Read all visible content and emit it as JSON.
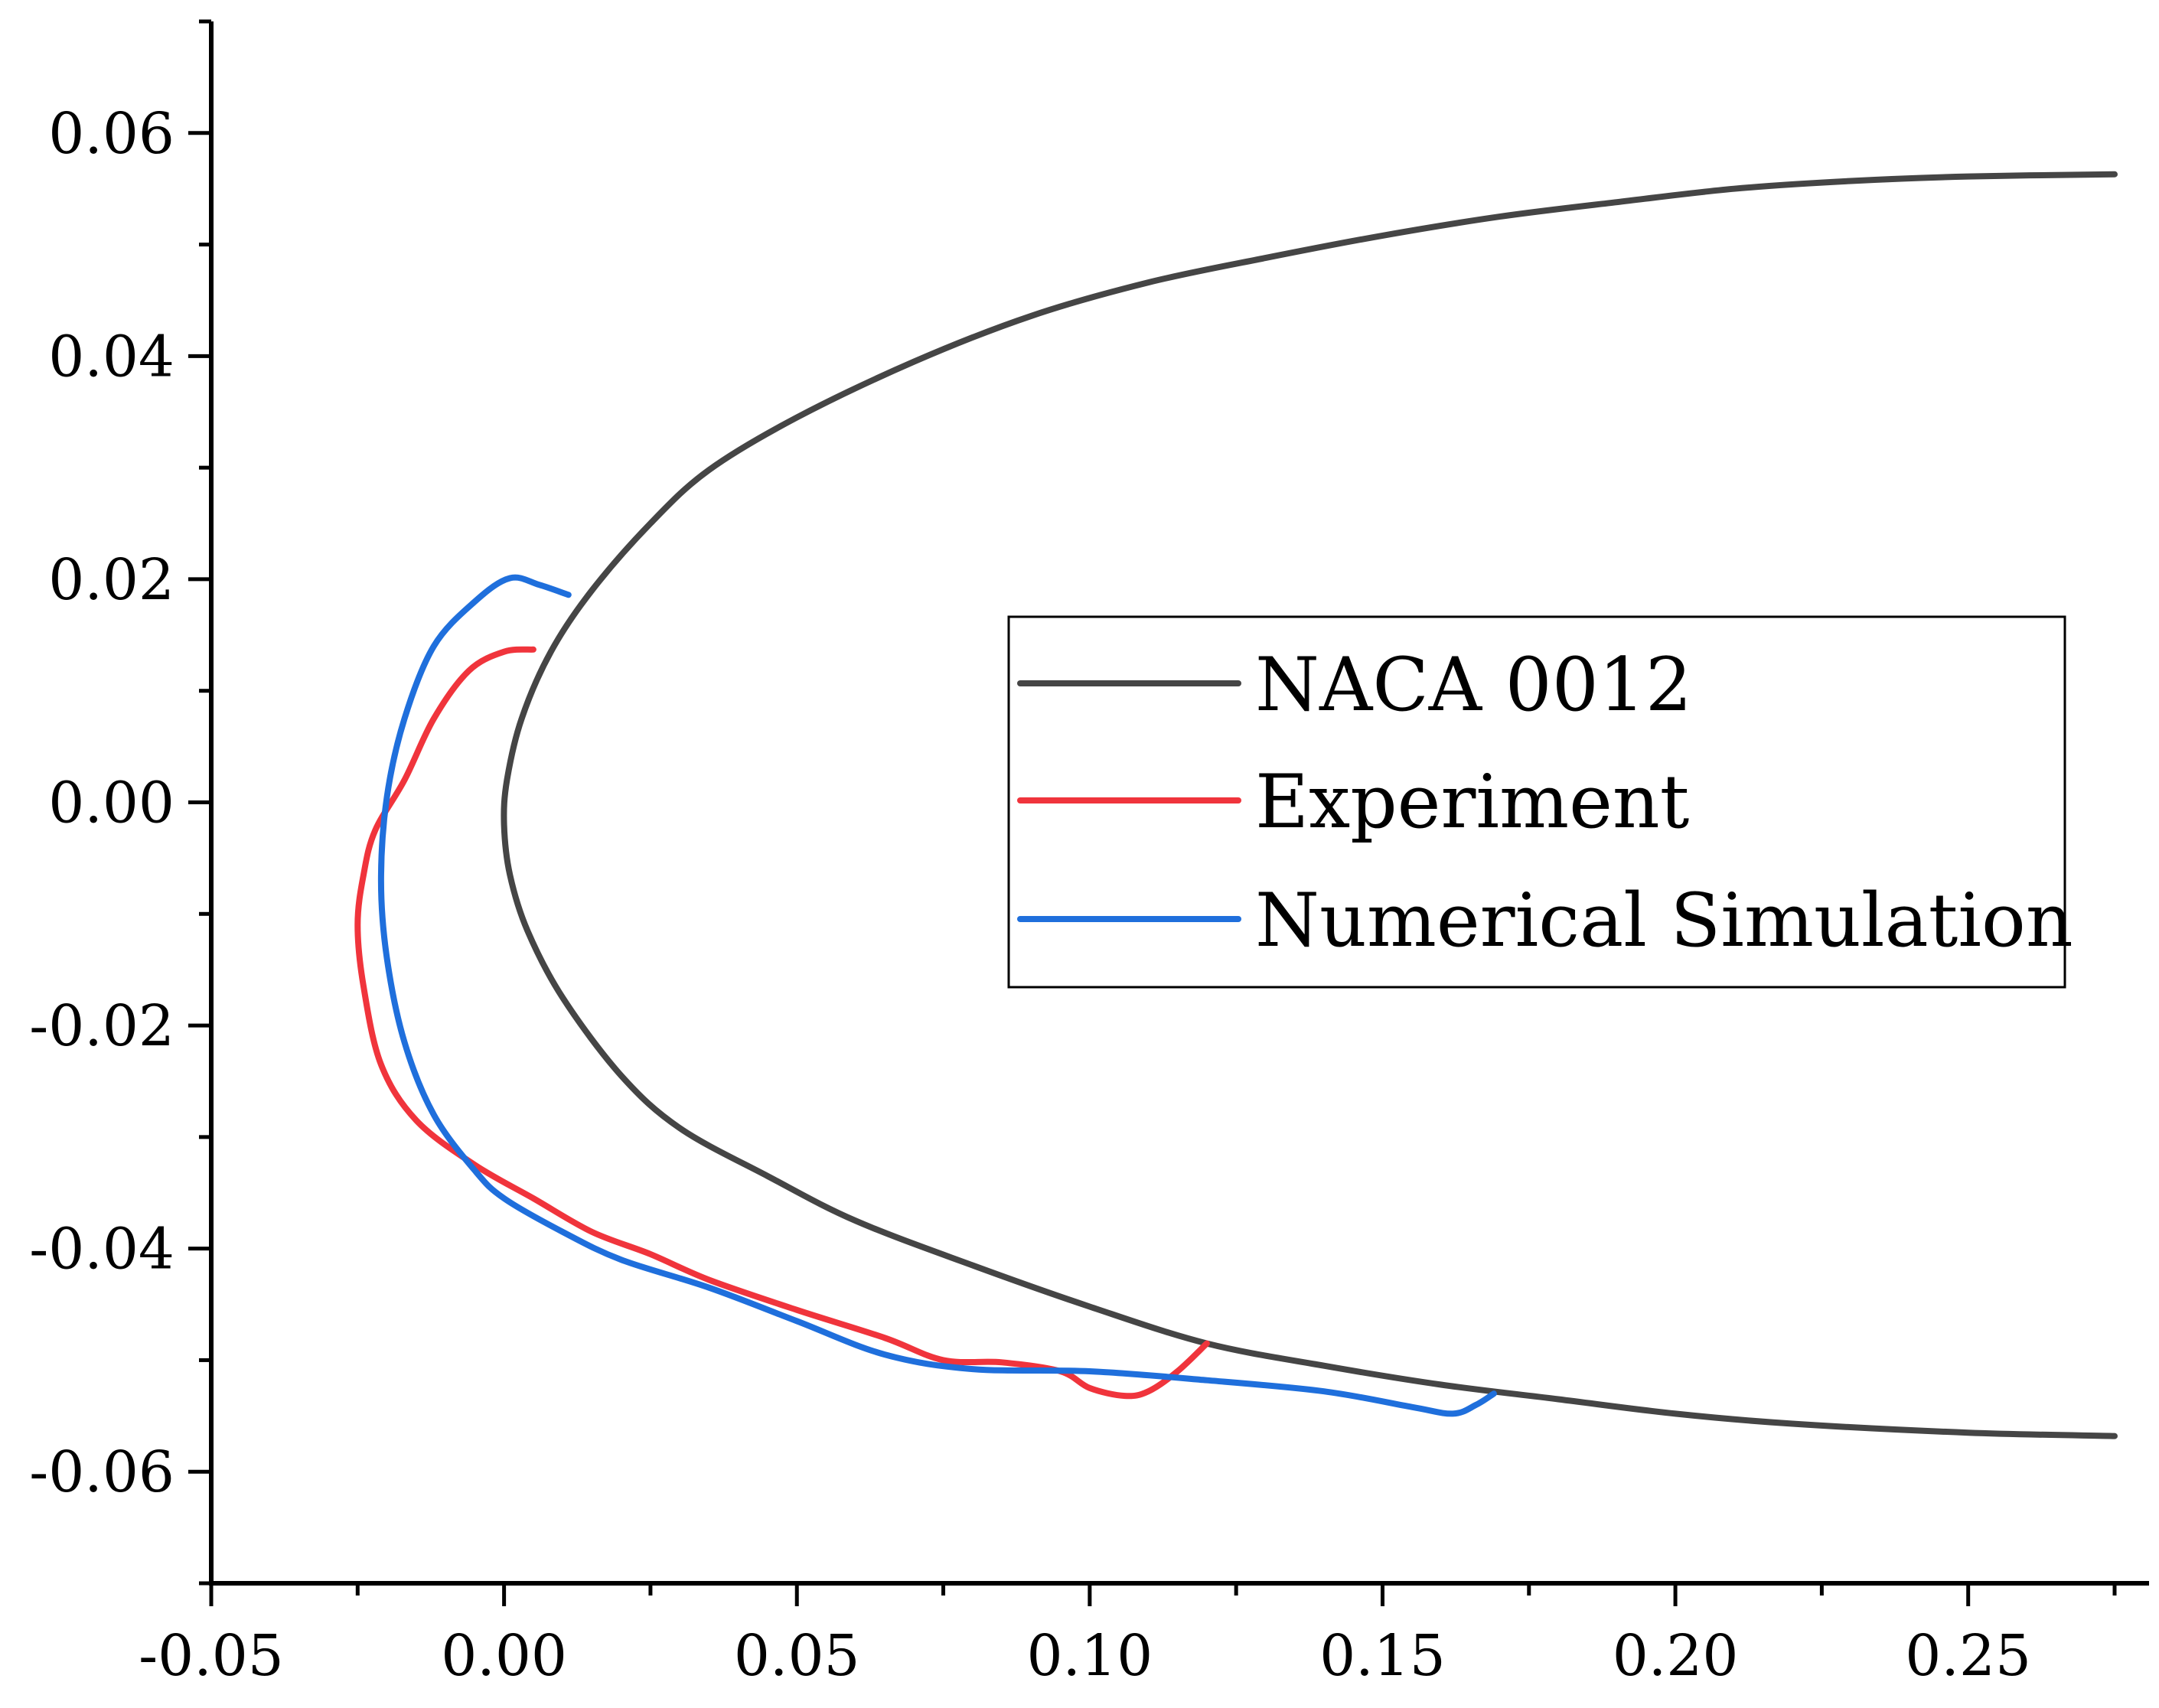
{
  "chart_data": {
    "type": "line",
    "title": "",
    "xlabel": "",
    "ylabel": "",
    "xlim": [
      -0.05,
      0.275
    ],
    "ylim": [
      -0.07,
      0.07
    ],
    "x_ticks": [
      -0.05,
      0.0,
      0.05,
      0.1,
      0.15,
      0.2,
      0.25
    ],
    "x_tick_labels": [
      "-0.05",
      "0.00",
      "0.05",
      "0.10",
      "0.15",
      "0.20",
      "0.25"
    ],
    "y_ticks": [
      -0.06,
      -0.04,
      -0.02,
      0.0,
      0.02,
      0.04,
      0.06
    ],
    "y_tick_labels": [
      "-0.06",
      "-0.04",
      "-0.02",
      "0.00",
      "0.02",
      "0.04",
      "0.06"
    ],
    "x_minor_step": 0.025,
    "y_minor_step": 0.01,
    "grid": false,
    "legend": {
      "position": "center-right"
    },
    "series": [
      {
        "name": "NACA 0012",
        "color": "#454545",
        "points": [
          [
            0.275,
            0.0563
          ],
          [
            0.25,
            0.0561
          ],
          [
            0.23,
            0.0557
          ],
          [
            0.21,
            0.055
          ],
          [
            0.19,
            0.0538
          ],
          [
            0.17,
            0.0525
          ],
          [
            0.15,
            0.0508
          ],
          [
            0.13,
            0.0488
          ],
          [
            0.11,
            0.0466
          ],
          [
            0.09,
            0.0436
          ],
          [
            0.07,
            0.0395
          ],
          [
            0.05,
            0.0345
          ],
          [
            0.035,
            0.0298
          ],
          [
            0.025,
            0.025
          ],
          [
            0.015,
            0.019
          ],
          [
            0.008,
            0.0135
          ],
          [
            0.003,
            0.0075
          ],
          [
            0.0005,
            0.002
          ],
          [
            0.0,
            -0.002
          ],
          [
            0.001,
            -0.0065
          ],
          [
            0.004,
            -0.0115
          ],
          [
            0.01,
            -0.0175
          ],
          [
            0.02,
            -0.0245
          ],
          [
            0.03,
            -0.0292
          ],
          [
            0.045,
            -0.0335
          ],
          [
            0.06,
            -0.0375
          ],
          [
            0.08,
            -0.0415
          ],
          [
            0.1,
            -0.0452
          ],
          [
            0.12,
            -0.0485
          ],
          [
            0.14,
            -0.0505
          ],
          [
            0.16,
            -0.0522
          ],
          [
            0.18,
            -0.0535
          ],
          [
            0.2,
            -0.0548
          ],
          [
            0.22,
            -0.0557
          ],
          [
            0.25,
            -0.0565
          ],
          [
            0.275,
            -0.0568
          ]
        ]
      },
      {
        "name": "Experiment",
        "color": "#f0343c",
        "points": [
          [
            0.005,
            0.0137
          ],
          [
            0.0,
            0.0135
          ],
          [
            -0.006,
            0.0118
          ],
          [
            -0.012,
            0.0075
          ],
          [
            -0.017,
            0.002
          ],
          [
            -0.022,
            -0.0025
          ],
          [
            -0.024,
            -0.0065
          ],
          [
            -0.025,
            -0.011
          ],
          [
            -0.024,
            -0.0165
          ],
          [
            -0.021,
            -0.0235
          ],
          [
            -0.015,
            -0.0285
          ],
          [
            -0.005,
            -0.0325
          ],
          [
            0.005,
            -0.0355
          ],
          [
            0.015,
            -0.0385
          ],
          [
            0.025,
            -0.0405
          ],
          [
            0.035,
            -0.0428
          ],
          [
            0.05,
            -0.0455
          ],
          [
            0.065,
            -0.048
          ],
          [
            0.075,
            -0.05
          ],
          [
            0.085,
            -0.0502
          ],
          [
            0.095,
            -0.051
          ],
          [
            0.1,
            -0.0525
          ],
          [
            0.106,
            -0.0532
          ],
          [
            0.11,
            -0.0528
          ],
          [
            0.115,
            -0.051
          ],
          [
            0.12,
            -0.0485
          ]
        ]
      },
      {
        "name": "Numerical Simulation",
        "color": "#1f6fdc",
        "points": [
          [
            0.011,
            0.0186
          ],
          [
            0.006,
            0.0195
          ],
          [
            0.001,
            0.0201
          ],
          [
            -0.005,
            0.018
          ],
          [
            -0.012,
            0.014
          ],
          [
            -0.017,
            0.0075
          ],
          [
            -0.02,
            0.0005
          ],
          [
            -0.021,
            -0.007
          ],
          [
            -0.02,
            -0.014
          ],
          [
            -0.017,
            -0.0215
          ],
          [
            -0.012,
            -0.028
          ],
          [
            -0.005,
            -0.033
          ],
          [
            0.0,
            -0.0355
          ],
          [
            0.01,
            -0.0385
          ],
          [
            0.02,
            -0.041
          ],
          [
            0.035,
            -0.0435
          ],
          [
            0.05,
            -0.0465
          ],
          [
            0.065,
            -0.0495
          ],
          [
            0.08,
            -0.0508
          ],
          [
            0.1,
            -0.051
          ],
          [
            0.12,
            -0.0518
          ],
          [
            0.14,
            -0.0528
          ],
          [
            0.155,
            -0.0542
          ],
          [
            0.162,
            -0.0548
          ],
          [
            0.166,
            -0.054
          ],
          [
            0.169,
            -0.053
          ]
        ]
      }
    ]
  }
}
